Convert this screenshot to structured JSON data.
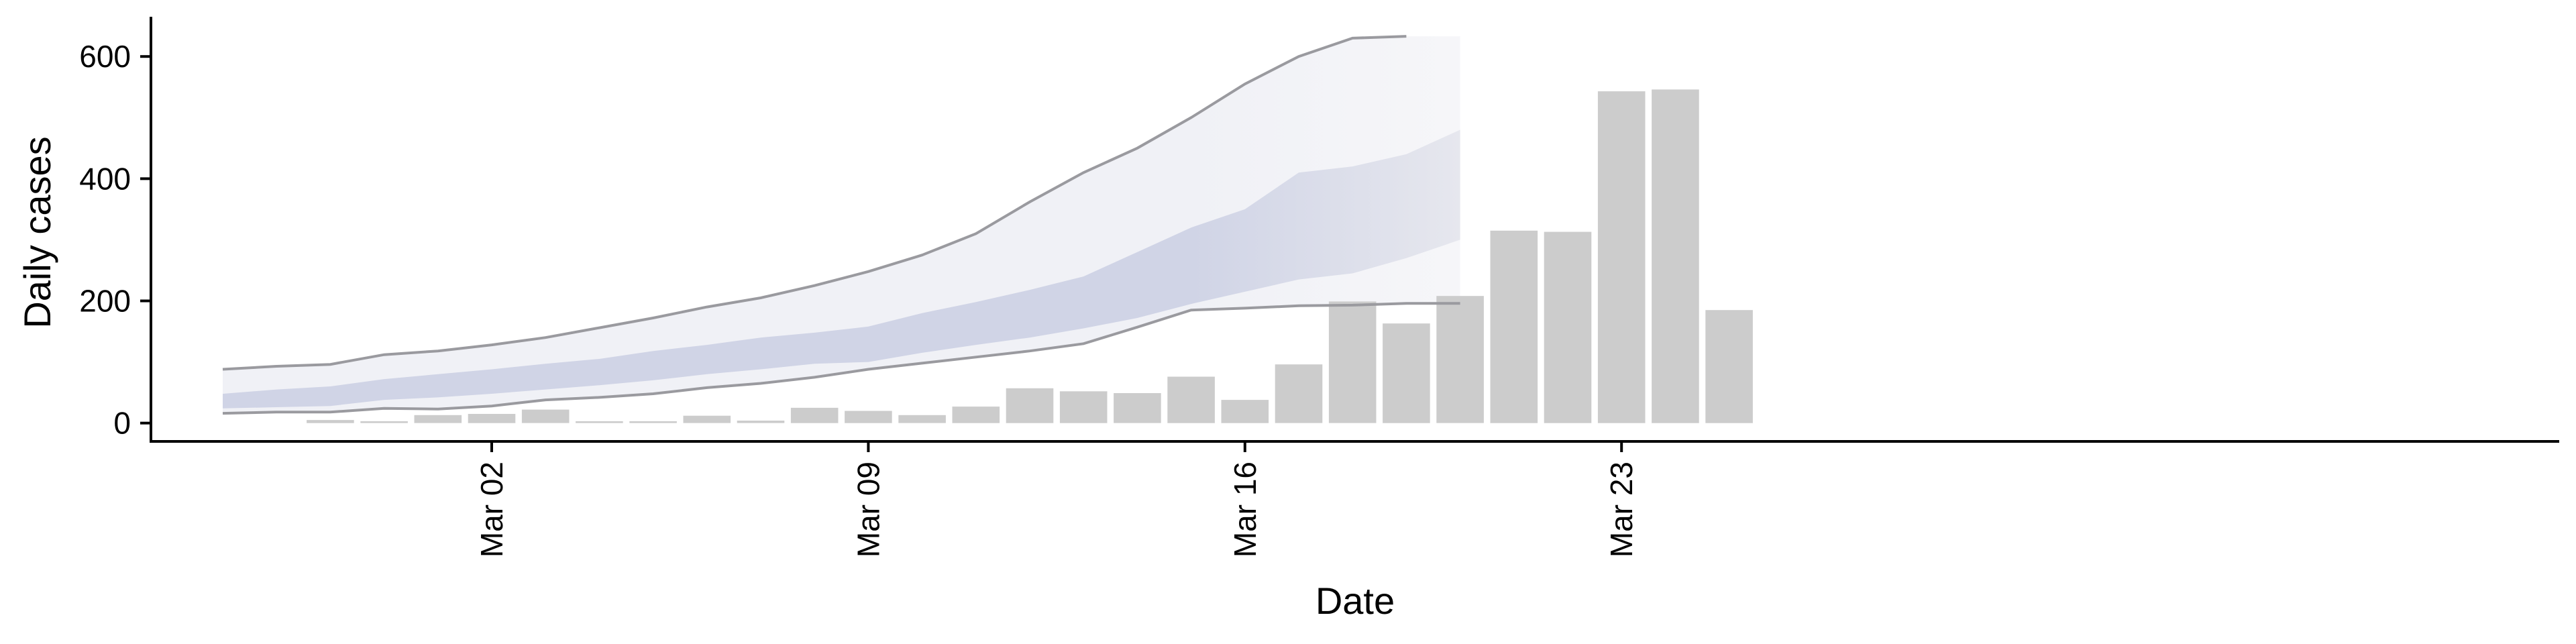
{
  "chart_data": {
    "type": "bar",
    "xlabel": "Date",
    "ylabel": "Daily cases",
    "ylim": [
      -30,
      665
    ],
    "grid": false,
    "x_tick_labels": [
      "Mar 02",
      "Mar 09",
      "Mar 16",
      "Mar 23"
    ],
    "y_tick_labels": [
      "0",
      "200",
      "400",
      "600"
    ],
    "y_ticks": [
      0,
      200,
      400,
      600
    ],
    "x_ticks": [
      "2020-03-02",
      "2020-03-09",
      "2020-03-16",
      "2020-03-23"
    ],
    "date_range": [
      "2020-02-26",
      "2020-03-29"
    ],
    "bars": {
      "dates": [
        "2020-02-28",
        "2020-02-29",
        "2020-03-01",
        "2020-03-02",
        "2020-03-03",
        "2020-03-04",
        "2020-03-05",
        "2020-03-06",
        "2020-03-07",
        "2020-03-08",
        "2020-03-09",
        "2020-03-10",
        "2020-03-11",
        "2020-03-12",
        "2020-03-13",
        "2020-03-14",
        "2020-03-15",
        "2020-03-16",
        "2020-03-17",
        "2020-03-18",
        "2020-03-19",
        "2020-03-20",
        "2020-03-21",
        "2020-03-22",
        "2020-03-23",
        "2020-03-24",
        "2020-03-25",
        "2020-03-26",
        "2020-03-27",
        "2020-03-28"
      ],
      "values": [
        5,
        3,
        13,
        15,
        22,
        3,
        3,
        12,
        4,
        25,
        20,
        13,
        27,
        57,
        52,
        49,
        76,
        38,
        96,
        199,
        163,
        208,
        315,
        313,
        543,
        546,
        185,
        0,
        0,
        0
      ]
    },
    "projection": {
      "dates": [
        "2020-02-26",
        "2020-02-27",
        "2020-02-28",
        "2020-02-29",
        "2020-03-01",
        "2020-03-02",
        "2020-03-03",
        "2020-03-04",
        "2020-03-05",
        "2020-03-06",
        "2020-03-07",
        "2020-03-08",
        "2020-03-09",
        "2020-03-10",
        "2020-03-11",
        "2020-03-12",
        "2020-03-13",
        "2020-03-14",
        "2020-03-15",
        "2020-03-16",
        "2020-03-17",
        "2020-03-18",
        "2020-03-19",
        "2020-03-20"
      ],
      "lower_90": [
        16,
        18,
        18,
        24,
        23,
        28,
        38,
        42,
        48,
        58,
        65,
        75,
        88,
        98,
        108,
        118,
        130,
        157,
        185,
        188,
        192,
        193,
        196,
        196
      ],
      "lower_50": [
        24,
        26,
        28,
        38,
        42,
        48,
        55,
        62,
        70,
        80,
        88,
        97,
        100,
        115,
        128,
        140,
        155,
        172,
        195,
        215,
        235,
        245,
        270,
        300
      ],
      "upper_50": [
        48,
        55,
        60,
        72,
        80,
        88,
        97,
        105,
        118,
        128,
        140,
        148,
        158,
        180,
        198,
        218,
        240,
        280,
        320,
        350,
        410,
        420,
        440,
        480
      ],
      "upper_90": [
        88,
        93,
        96,
        112,
        118,
        128,
        140,
        156,
        172,
        190,
        205,
        225,
        248,
        275,
        310,
        362,
        410,
        450,
        500,
        555,
        600,
        630,
        633,
        633
      ]
    },
    "colors": {
      "bar": "#cccccc",
      "band_outer": "#f0f1f6",
      "band_inner": "#d0d4e6",
      "band_outer_faded": "#f6f6f9",
      "band_inner_faded": "#e6e7ee",
      "line_outer": "#9a9a9f",
      "line_inner": "#bdbec4",
      "axis": "#000000"
    }
  }
}
